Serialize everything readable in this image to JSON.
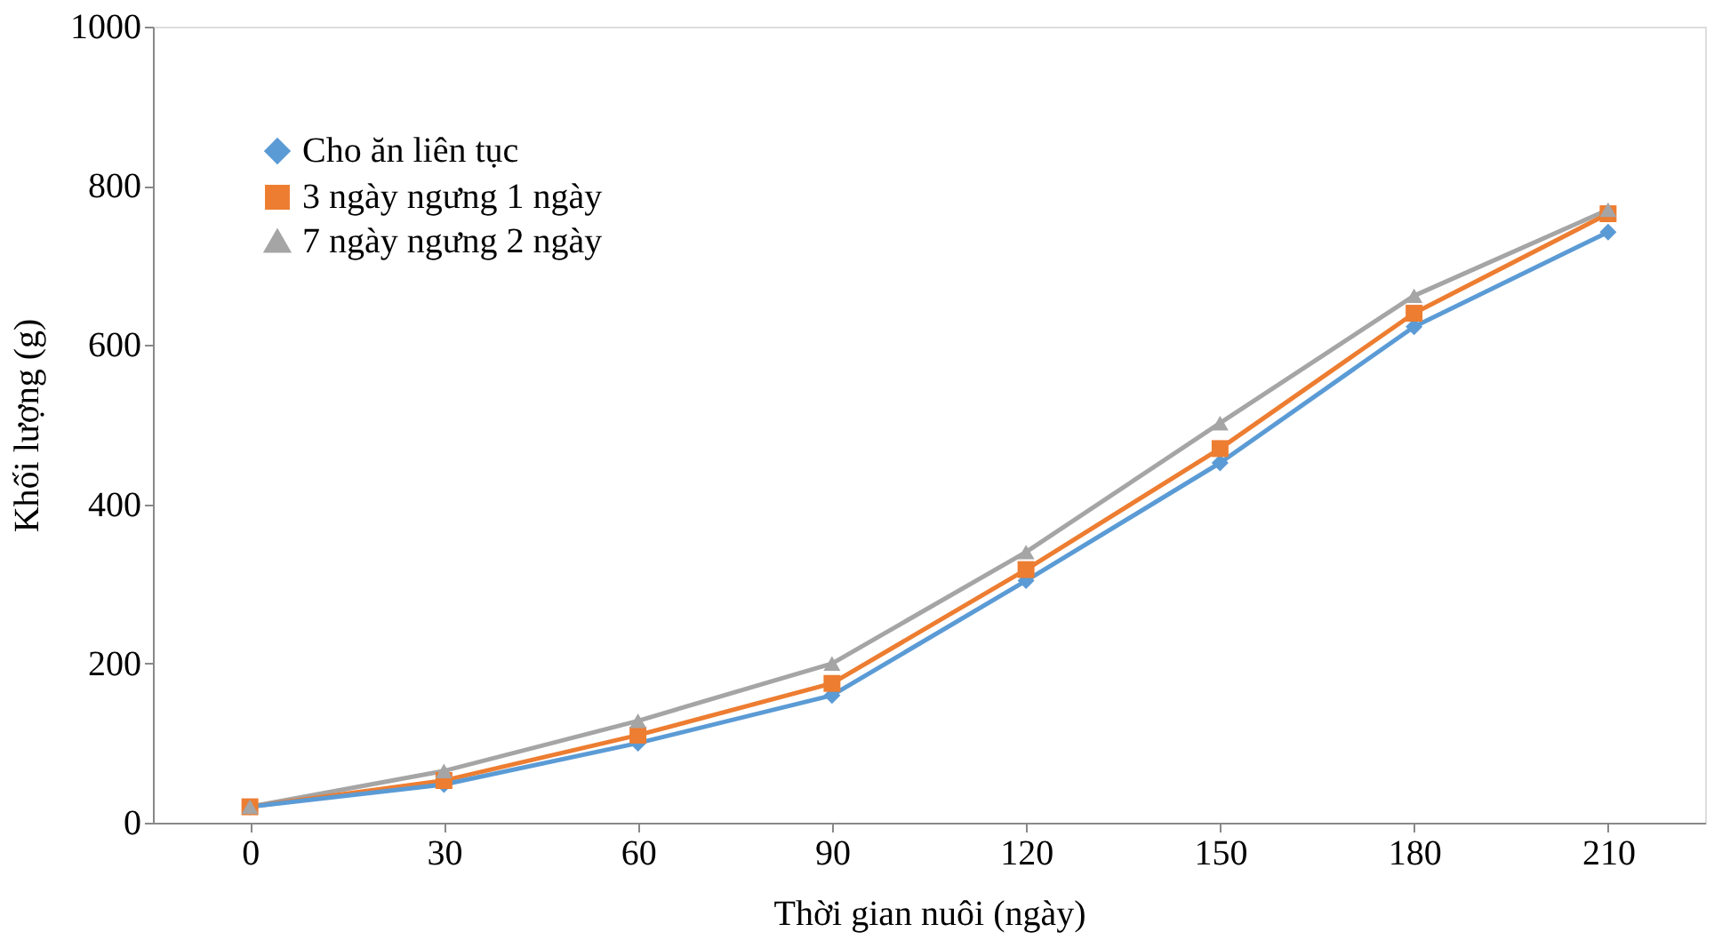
{
  "chart_data": {
    "type": "line",
    "xlabel": "Thời gian nuôi (ngày)",
    "ylabel": "Khối lượng (g)",
    "x": [
      0,
      30,
      60,
      90,
      120,
      150,
      180,
      210
    ],
    "series": [
      {
        "name": "Cho ăn liên tục",
        "color": "#5b9bd5",
        "marker": "diamond",
        "values": [
          20,
          48,
          100,
          160,
          304,
          452,
          623,
          742
        ]
      },
      {
        "name": "3 ngày ngưng 1 ngày",
        "color": "#ed7d31",
        "marker": "square",
        "values": [
          20,
          53,
          110,
          175,
          318,
          470,
          640,
          765
        ]
      },
      {
        "name": "7 ngày ngưng 2 ngày",
        "color": "#a5a5a5",
        "marker": "triangle",
        "values": [
          20,
          65,
          128,
          200,
          340,
          502,
          662,
          770
        ]
      }
    ],
    "xlim": [
      -15,
      225
    ],
    "xticks": [
      0,
      30,
      60,
      90,
      120,
      150,
      180,
      210
    ],
    "ylim": [
      0,
      1000
    ],
    "yticks": [
      0,
      200,
      400,
      600,
      800,
      1000
    ],
    "grid": false,
    "legend": "top left",
    "line_style": "solid"
  }
}
